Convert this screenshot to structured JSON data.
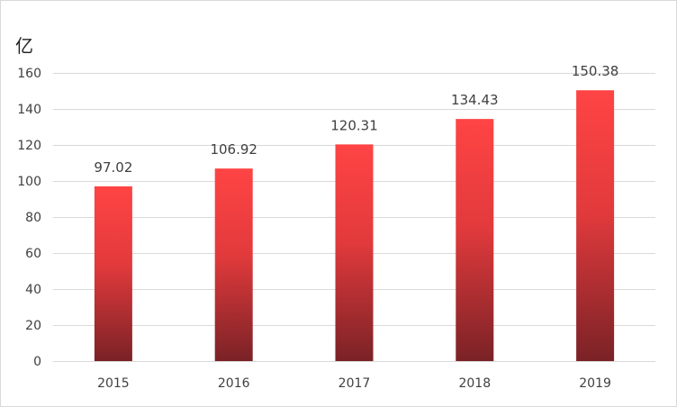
{
  "chart_data": {
    "type": "bar",
    "title": "",
    "unit_label": "亿",
    "categories": [
      "2015",
      "2016",
      "2017",
      "2018",
      "2019"
    ],
    "values": [
      97.02,
      106.92,
      120.31,
      134.43,
      150.38
    ],
    "data_labels": [
      "97.02",
      "106.92",
      "120.31",
      "134.43",
      "150.38"
    ],
    "ylim": [
      0,
      160
    ],
    "y_ticks": [
      "0",
      "20",
      "40",
      "60",
      "80",
      "100",
      "120",
      "140",
      "160"
    ],
    "grid": true,
    "legend": "none",
    "bar_color_top": "#ff4444",
    "bar_color_bottom": "#7a2226"
  }
}
